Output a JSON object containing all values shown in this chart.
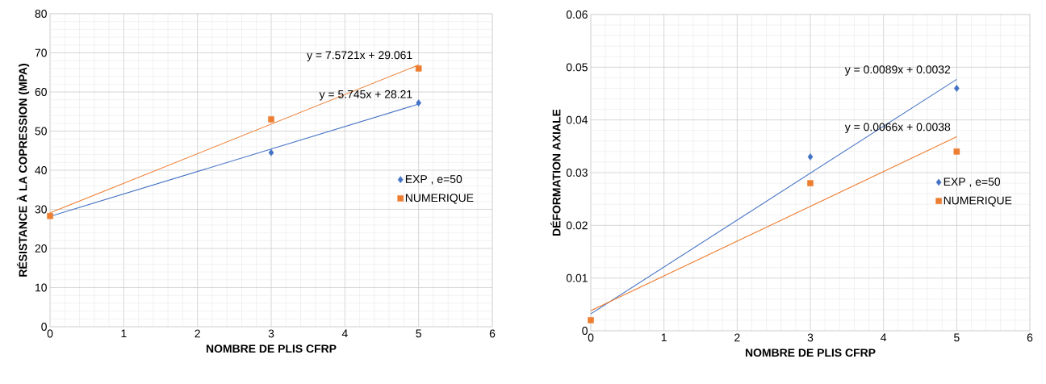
{
  "chart_data": [
    {
      "type": "scatter",
      "xlabel": "NOMBRE DE PLIS CFRP",
      "ylabel": "RÉSISTANCE À LA COPRESSION (MPA)",
      "xlim": [
        0,
        6
      ],
      "xticks": [
        0,
        1,
        2,
        3,
        4,
        5,
        6
      ],
      "ylim": [
        0,
        80
      ],
      "yticks": [
        0,
        10,
        20,
        30,
        40,
        50,
        60,
        70,
        80
      ],
      "grid": true,
      "legend": "right",
      "series": [
        {
          "name": "EXP , e=50",
          "color": "#4472c4",
          "marker": "diamond",
          "x": [
            3,
            5
          ],
          "values": [
            44.5,
            57.2
          ]
        },
        {
          "name": "NUMERIQUE",
          "color": "#ed7d31",
          "marker": "square",
          "x": [
            0,
            3,
            5
          ],
          "values": [
            28.3,
            53,
            66
          ]
        },
        {
          "type": "line",
          "color": "#4472c4",
          "line_style": "solid",
          "x": [
            0,
            5
          ],
          "values": [
            28.2,
            56.9
          ]
        },
        {
          "type": "line",
          "color": "#ed7d31",
          "line_style": "solid",
          "x": [
            0,
            5
          ],
          "values": [
            29.1,
            66.9
          ]
        }
      ],
      "annotations": [
        "y = 5.745x + 28.21",
        "y = 7.5721x + 29.061"
      ]
    },
    {
      "type": "scatter",
      "xlabel": "NOMBRE DE PLIS CFRP",
      "ylabel": "DÉFORMATION AXIALE",
      "xlim": [
        0,
        6
      ],
      "xticks": [
        0,
        1,
        2,
        3,
        4,
        5,
        6
      ],
      "ylim": [
        0,
        0.06
      ],
      "yticks": [
        0,
        0.01,
        0.02,
        0.03,
        0.04,
        0.05,
        0.06
      ],
      "grid": true,
      "legend": "right",
      "series": [
        {
          "name": "EXP , e=50",
          "color": "#4472c4",
          "marker": "diamond",
          "x": [
            3,
            5
          ],
          "values": [
            0.033,
            0.046
          ]
        },
        {
          "name": "NUMERIQUE",
          "color": "#ed7d31",
          "marker": "square",
          "x": [
            0,
            3,
            5
          ],
          "values": [
            0.002,
            0.028,
            0.034
          ]
        },
        {
          "type": "line",
          "color": "#4472c4",
          "line_style": "solid",
          "x": [
            0,
            5
          ],
          "values": [
            0.0032,
            0.0477
          ]
        },
        {
          "type": "line",
          "color": "#ed7d31",
          "line_style": "solid",
          "x": [
            0,
            5
          ],
          "values": [
            0.0038,
            0.0368
          ]
        }
      ],
      "annotations": [
        "y = 0.0089x + 0.0032",
        "y = 0.0066x + 0.0038"
      ]
    }
  ]
}
